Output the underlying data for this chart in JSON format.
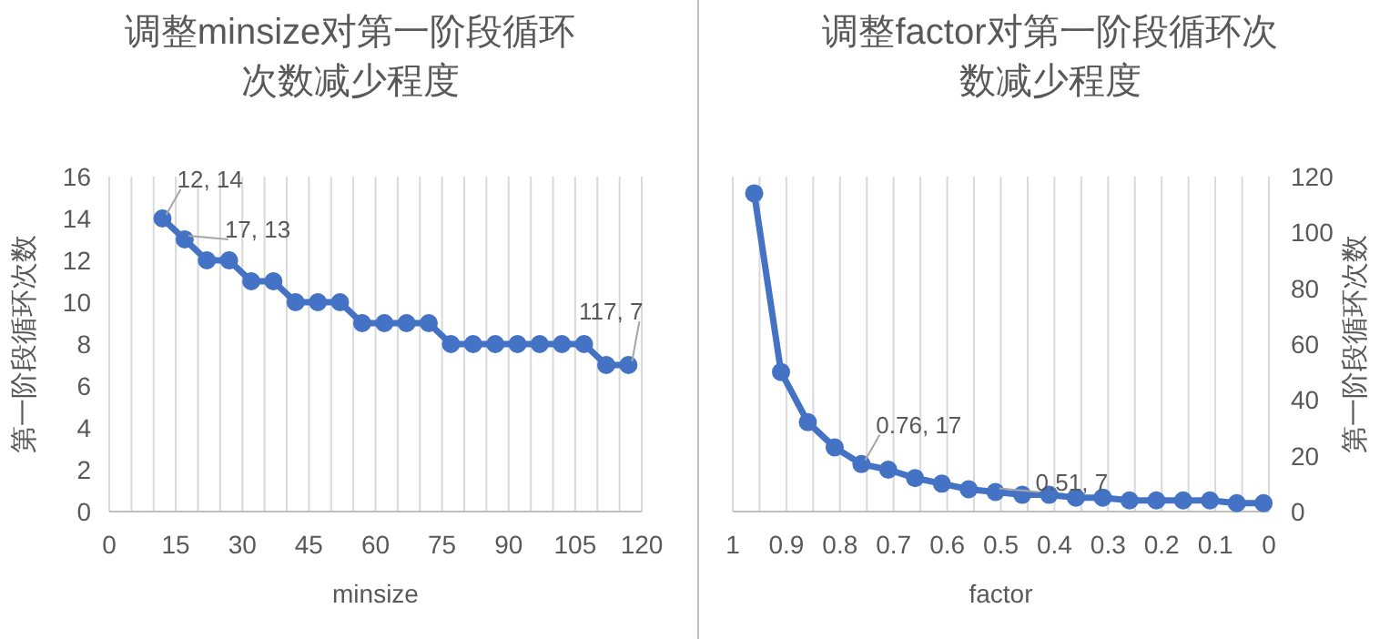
{
  "chart_data": [
    {
      "type": "line",
      "title": "调整minsize对第一阶段循环次数减少程度",
      "xlabel": "minsize",
      "ylabel": "第一阶段循环次数",
      "x": [
        12,
        17,
        22,
        27,
        32,
        37,
        42,
        47,
        52,
        57,
        62,
        67,
        72,
        77,
        82,
        87,
        92,
        97,
        102,
        107,
        112,
        117
      ],
      "series": [
        {
          "color": "#4472c4",
          "values": [
            14,
            13,
            12,
            12,
            11,
            11,
            10,
            10,
            10,
            9,
            9,
            9,
            9,
            8,
            8,
            8,
            8,
            8,
            8,
            8,
            7,
            7
          ]
        }
      ],
      "xlim": [
        0,
        120
      ],
      "ylim": [
        0,
        16
      ],
      "xticks": [
        0,
        {
          "value": 5,
          "label": null
        },
        {
          "value": 10,
          "label": null
        },
        15,
        {
          "value": 20,
          "label": null
        },
        {
          "value": 25,
          "label": null
        },
        30,
        {
          "value": 35,
          "label": null
        },
        {
          "value": 40,
          "label": null
        },
        45,
        {
          "value": 50,
          "label": null
        },
        {
          "value": 55,
          "label": null
        },
        60,
        {
          "value": 65,
          "label": null
        },
        {
          "value": 70,
          "label": null
        },
        75,
        {
          "value": 80,
          "label": null
        },
        {
          "value": 85,
          "label": null
        },
        90,
        {
          "value": 95,
          "label": null
        },
        {
          "value": 100,
          "label": null
        },
        105,
        {
          "value": 110,
          "label": null
        },
        {
          "value": 115,
          "label": null
        },
        120
      ],
      "yticks": [
        0,
        2,
        4,
        6,
        8,
        10,
        12,
        14,
        16
      ],
      "grid": "x",
      "marker": "circle",
      "line_style": "solid",
      "annotations": [
        {
          "text": "12, 14",
          "x": 12,
          "y": 14
        },
        {
          "text": "17, 13",
          "x": 17,
          "y": 13
        },
        {
          "text": "117, 7",
          "x": 117,
          "y": 7
        }
      ]
    },
    {
      "type": "line",
      "title": "调整factor对第一阶段循环次数减少程度",
      "xlabel": "factor",
      "ylabel": "第一阶段循环次数",
      "x": [
        0.96,
        0.91,
        0.86,
        0.81,
        0.76,
        0.71,
        0.66,
        0.61,
        0.56,
        0.51,
        0.46,
        0.41,
        0.36,
        0.31,
        0.26,
        0.21,
        0.16,
        0.11,
        0.06,
        0.01
      ],
      "series": [
        {
          "color": "#4472c4",
          "values": [
            114,
            50,
            32,
            23,
            17,
            15,
            12,
            10,
            8,
            7,
            6,
            6,
            5,
            5,
            4,
            4,
            4,
            4,
            3,
            3
          ]
        }
      ],
      "xlim": [
        1,
        0
      ],
      "ylim": [
        0,
        120
      ],
      "xticks": [
        1,
        {
          "value": 0.95,
          "label": null
        },
        0.9,
        {
          "value": 0.85,
          "label": null
        },
        0.8,
        {
          "value": 0.75,
          "label": null
        },
        0.7,
        {
          "value": 0.65,
          "label": null
        },
        0.6,
        {
          "value": 0.55,
          "label": null
        },
        0.5,
        {
          "value": 0.45,
          "label": null
        },
        0.4,
        {
          "value": 0.35,
          "label": null
        },
        0.3,
        {
          "value": 0.25,
          "label": null
        },
        0.2,
        {
          "value": 0.15,
          "label": null
        },
        0.1,
        {
          "value": 0.05,
          "label": null
        },
        0
      ],
      "yticks": [
        0,
        20,
        40,
        60,
        80,
        100,
        120
      ],
      "grid": "x",
      "marker": "circle",
      "line_style": "solid",
      "annotations": [
        {
          "text": "0.76, 17",
          "x": 0.76,
          "y": 17
        },
        {
          "text": "0.51, 7",
          "x": 0.51,
          "y": 7
        }
      ]
    }
  ]
}
